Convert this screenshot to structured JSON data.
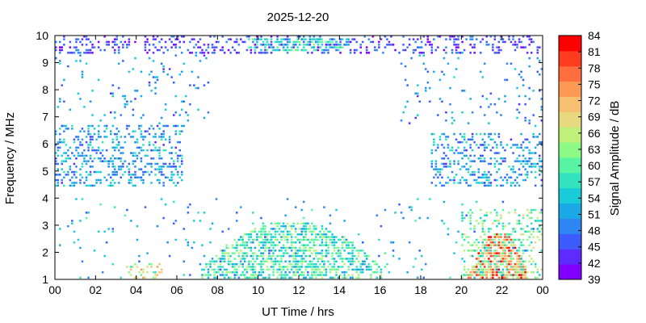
{
  "chart_data": {
    "type": "heatmap",
    "title": "2025-12-20",
    "xlabel": "UT Time / hrs",
    "ylabel": "Frequency / MHz",
    "colorbar_label": "Signal Amplitude / dB",
    "xlim": [
      0,
      24
    ],
    "ylim": [
      1,
      10
    ],
    "x_ticks": [
      "00",
      "02",
      "04",
      "06",
      "08",
      "10",
      "12",
      "14",
      "16",
      "18",
      "20",
      "22",
      "00"
    ],
    "y_ticks": [
      "1",
      "2",
      "3",
      "4",
      "5",
      "6",
      "7",
      "8",
      "9",
      "10"
    ],
    "colorbar": {
      "range": [
        39,
        84
      ],
      "ticks": [
        "39",
        "42",
        "45",
        "48",
        "51",
        "54",
        "57",
        "60",
        "63",
        "66",
        "69",
        "72",
        "75",
        "78",
        "81",
        "84"
      ],
      "colors": [
        "#7f00ff",
        "#5e2bff",
        "#3d5cff",
        "#2e86f2",
        "#1aa8e6",
        "#1acbd9",
        "#33e3c0",
        "#57f5a3",
        "#8cfa84",
        "#bff07a",
        "#e6d980",
        "#f7c070",
        "#fc9a55",
        "#ff6e3c",
        "#ff3b20",
        "#ff0000"
      ]
    },
    "regions": [
      {
        "name": "upper band",
        "t": [
          0,
          24
        ],
        "f": [
          9.3,
          9.9
        ],
        "amp": [
          40,
          50
        ],
        "density": 0.28
      },
      {
        "name": "daytime upper band",
        "t": [
          9.5,
          14.5
        ],
        "f": [
          9.4,
          9.8
        ],
        "amp": [
          52,
          62
        ],
        "density": 0.45
      },
      {
        "name": "night band morning",
        "t": [
          0,
          6.2
        ],
        "f": [
          4.4,
          6.6
        ],
        "amp": [
          44,
          58
        ],
        "density": 0.3
      },
      {
        "name": "night band evening",
        "t": [
          18.5,
          24
        ],
        "f": [
          4.4,
          6.3
        ],
        "amp": [
          44,
          58
        ],
        "density": 0.3
      },
      {
        "name": "scatter morning",
        "t": [
          0,
          7.5
        ],
        "f": [
          6.6,
          9.3
        ],
        "amp": [
          44,
          56
        ],
        "density": 0.06
      },
      {
        "name": "scatter evening",
        "t": [
          17,
          24
        ],
        "f": [
          6.6,
          9.3
        ],
        "amp": [
          44,
          56
        ],
        "density": 0.06
      },
      {
        "name": "daytime arc",
        "t": [
          7.2,
          16
        ],
        "f": [
          1.0,
          3.1
        ],
        "amp": [
          50,
          66
        ],
        "density": 0.55
      },
      {
        "name": "evening burst",
        "t": [
          20.3,
          23.2
        ],
        "f": [
          1.0,
          2.7
        ],
        "amp": [
          66,
          84
        ],
        "density": 0.75
      },
      {
        "name": "evening burst edge",
        "t": [
          20,
          24
        ],
        "f": [
          1.0,
          3.6
        ],
        "amp": [
          54,
          68
        ],
        "density": 0.25
      },
      {
        "name": "dawn spikes",
        "t": [
          3.5,
          5.2
        ],
        "f": [
          1.0,
          1.6
        ],
        "amp": [
          60,
          74
        ],
        "density": 0.35
      },
      {
        "name": "low sporadic",
        "t": [
          0,
          24
        ],
        "f": [
          1.0,
          4.0
        ],
        "amp": [
          45,
          60
        ],
        "density": 0.03
      }
    ]
  }
}
